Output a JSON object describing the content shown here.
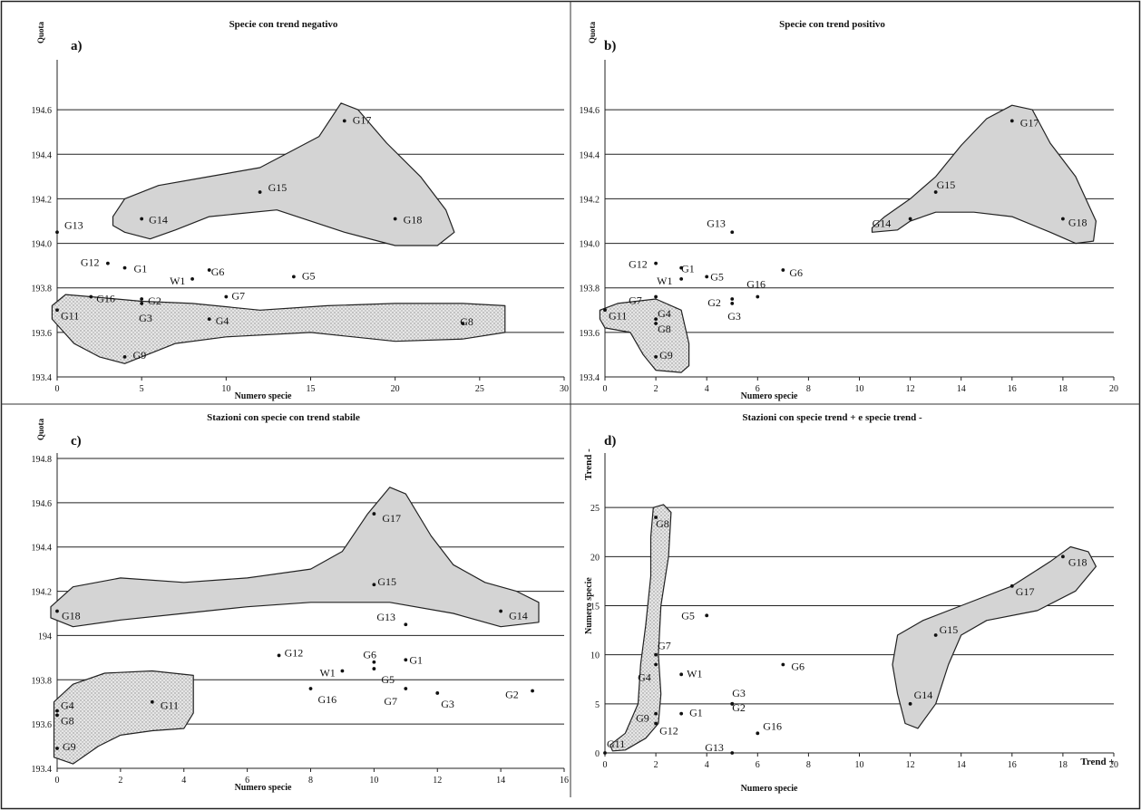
{
  "chart_data": [
    {
      "panel_label": "a)",
      "title": "Specie con trend negativo",
      "type": "scatter",
      "xlabel": "Numero specie",
      "ylabel": "Quota",
      "xlim": [
        0,
        30
      ],
      "ylim": [
        193.4,
        194.8
      ],
      "x_ticks": [
        0,
        5,
        10,
        15,
        20,
        25,
        30
      ],
      "y_ticks": [
        193.4,
        193.6,
        193.8,
        194.0,
        194.2,
        194.4,
        194.6
      ],
      "y_tick_labels": [
        "193.4",
        "193.6",
        "193.8",
        "194.0",
        "194.2",
        "194.4",
        "194.6"
      ],
      "grid": "horizontal",
      "points": [
        {
          "label": "G13",
          "x": 0,
          "y": 194.05
        },
        {
          "label": "G11",
          "x": 0,
          "y": 193.7
        },
        {
          "label": "G16",
          "x": 2,
          "y": 193.76
        },
        {
          "label": "G12",
          "x": 3,
          "y": 193.91
        },
        {
          "label": "G9",
          "x": 4,
          "y": 193.49
        },
        {
          "label": "G1",
          "x": 4,
          "y": 193.89
        },
        {
          "label": "G2",
          "x": 5,
          "y": 193.75
        },
        {
          "label": "G3",
          "x": 5,
          "y": 193.73
        },
        {
          "label": "G14",
          "x": 5,
          "y": 194.11
        },
        {
          "label": "W1",
          "x": 8,
          "y": 193.84
        },
        {
          "label": "G6",
          "x": 9,
          "y": 193.88
        },
        {
          "label": "G4",
          "x": 9,
          "y": 193.66
        },
        {
          "label": "G7",
          "x": 10,
          "y": 193.76
        },
        {
          "label": "G15",
          "x": 12,
          "y": 194.23
        },
        {
          "label": "G5",
          "x": 14,
          "y": 193.85
        },
        {
          "label": "G17",
          "x": 17,
          "y": 194.55
        },
        {
          "label": "G18",
          "x": 20,
          "y": 194.11
        },
        {
          "label": "G8",
          "x": 24,
          "y": 193.64
        }
      ],
      "regions": [
        {
          "fill": "solid",
          "path": [
            [
              3.3,
              194.12
            ],
            [
              4,
              194.2
            ],
            [
              6,
              194.26
            ],
            [
              9,
              194.3
            ],
            [
              12,
              194.34
            ],
            [
              14,
              194.42
            ],
            [
              15.5,
              194.48
            ],
            [
              16.8,
              194.63
            ],
            [
              17.8,
              194.6
            ],
            [
              19.5,
              194.45
            ],
            [
              21.5,
              194.3
            ],
            [
              23,
              194.15
            ],
            [
              23.5,
              194.05
            ],
            [
              22.5,
              193.99
            ],
            [
              20,
              193.99
            ],
            [
              17,
              194.05
            ],
            [
              13,
              194.15
            ],
            [
              9,
              194.12
            ],
            [
              7,
              194.06
            ],
            [
              5.5,
              194.02
            ],
            [
              4,
              194.05
            ],
            [
              3.3,
              194.08
            ]
          ]
        },
        {
          "fill": "dotted",
          "path": [
            [
              -0.3,
              193.72
            ],
            [
              0.5,
              193.77
            ],
            [
              2,
              193.76
            ],
            [
              5,
              193.74
            ],
            [
              8,
              193.73
            ],
            [
              12,
              193.7
            ],
            [
              16,
              193.72
            ],
            [
              20,
              193.73
            ],
            [
              24,
              193.73
            ],
            [
              26.5,
              193.72
            ],
            [
              26.5,
              193.6
            ],
            [
              24,
              193.57
            ],
            [
              20,
              193.56
            ],
            [
              15,
              193.6
            ],
            [
              10,
              193.58
            ],
            [
              7,
              193.55
            ],
            [
              4,
              193.46
            ],
            [
              2.5,
              193.49
            ],
            [
              1,
              193.55
            ],
            [
              -0.3,
              193.66
            ]
          ]
        }
      ]
    },
    {
      "panel_label": "b)",
      "title": "Specie con trend positivo",
      "type": "scatter",
      "xlabel": "Numero specie",
      "ylabel": "Quota",
      "xlim": [
        0,
        20
      ],
      "ylim": [
        193.4,
        194.8
      ],
      "x_ticks": [
        0,
        2,
        4,
        6,
        8,
        10,
        12,
        14,
        16,
        18,
        20
      ],
      "y_ticks": [
        193.4,
        193.6,
        193.8,
        194.0,
        194.2,
        194.4,
        194.6
      ],
      "y_tick_labels": [
        "193.4",
        "193.6",
        "193.8",
        "194.0",
        "194.2",
        "194.4",
        "194.6"
      ],
      "grid": "horizontal",
      "points": [
        {
          "label": "G11",
          "x": 0,
          "y": 193.7
        },
        {
          "label": "G12",
          "x": 2,
          "y": 193.91
        },
        {
          "label": "G7",
          "x": 2,
          "y": 193.76
        },
        {
          "label": "G4",
          "x": 2,
          "y": 193.66
        },
        {
          "label": "G8",
          "x": 2,
          "y": 193.64
        },
        {
          "label": "G9",
          "x": 2,
          "y": 193.49
        },
        {
          "label": "G1",
          "x": 3,
          "y": 193.89
        },
        {
          "label": "W1",
          "x": 3,
          "y": 193.84
        },
        {
          "label": "G5",
          "x": 4,
          "y": 193.85
        },
        {
          "label": "G2",
          "x": 5,
          "y": 193.75
        },
        {
          "label": "G3",
          "x": 5,
          "y": 193.73
        },
        {
          "label": "G13",
          "x": 5,
          "y": 194.05
        },
        {
          "label": "G16",
          "x": 6,
          "y": 193.76
        },
        {
          "label": "G6",
          "x": 7,
          "y": 193.88
        },
        {
          "label": "G14",
          "x": 12,
          "y": 194.11
        },
        {
          "label": "G15",
          "x": 13,
          "y": 194.23
        },
        {
          "label": "G17",
          "x": 16,
          "y": 194.55
        },
        {
          "label": "G18",
          "x": 18,
          "y": 194.11
        }
      ],
      "regions": [
        {
          "fill": "solid",
          "path": [
            [
              10.5,
              194.07
            ],
            [
              11,
              194.12
            ],
            [
              12,
              194.2
            ],
            [
              13,
              194.3
            ],
            [
              14,
              194.44
            ],
            [
              15,
              194.56
            ],
            [
              16,
              194.62
            ],
            [
              16.8,
              194.6
            ],
            [
              17.5,
              194.45
            ],
            [
              18.5,
              194.3
            ],
            [
              19.3,
              194.1
            ],
            [
              19.2,
              194.01
            ],
            [
              18.5,
              194.0
            ],
            [
              17.5,
              194.05
            ],
            [
              16,
              194.12
            ],
            [
              14.5,
              194.14
            ],
            [
              13,
              194.14
            ],
            [
              12,
              194.1
            ],
            [
              11.5,
              194.06
            ],
            [
              10.5,
              194.05
            ]
          ]
        },
        {
          "fill": "dotted",
          "path": [
            [
              -0.2,
              193.7
            ],
            [
              0.5,
              193.73
            ],
            [
              2,
              193.75
            ],
            [
              3,
              193.7
            ],
            [
              3.3,
              193.55
            ],
            [
              3.3,
              193.45
            ],
            [
              3,
              193.42
            ],
            [
              2,
              193.43
            ],
            [
              1.5,
              193.5
            ],
            [
              1,
              193.6
            ],
            [
              0,
              193.62
            ],
            [
              -0.2,
              193.66
            ]
          ]
        }
      ]
    },
    {
      "panel_label": "c)",
      "title": "Stazioni con specie con trend stabile",
      "type": "scatter",
      "xlabel": "Numero specie",
      "ylabel": "Quota",
      "xlim": [
        0,
        16
      ],
      "ylim": [
        193.4,
        194.8
      ],
      "x_ticks": [
        0,
        2,
        4,
        6,
        8,
        10,
        12,
        14,
        16
      ],
      "y_ticks": [
        193.4,
        193.6,
        193.8,
        194.0,
        194.2,
        194.4,
        194.6,
        194.8
      ],
      "y_tick_labels": [
        "193.4",
        "193.6",
        "193.8",
        "194",
        "194.2",
        "194.4",
        "194.6",
        "194.8"
      ],
      "grid": "horizontal",
      "points": [
        {
          "label": "G18",
          "x": 0,
          "y": 194.11
        },
        {
          "label": "G4",
          "x": 0,
          "y": 193.66
        },
        {
          "label": "G8",
          "x": 0,
          "y": 193.64
        },
        {
          "label": "G9",
          "x": 0,
          "y": 193.49
        },
        {
          "label": "G11",
          "x": 3,
          "y": 193.7
        },
        {
          "label": "G12",
          "x": 7,
          "y": 193.91
        },
        {
          "label": "G16",
          "x": 8,
          "y": 193.76
        },
        {
          "label": "W1",
          "x": 9,
          "y": 193.84
        },
        {
          "label": "G17",
          "x": 10,
          "y": 194.55
        },
        {
          "label": "G15",
          "x": 10,
          "y": 194.23
        },
        {
          "label": "G6",
          "x": 10,
          "y": 193.88
        },
        {
          "label": "G5",
          "x": 10,
          "y": 193.85
        },
        {
          "label": "G13",
          "x": 11,
          "y": 194.05
        },
        {
          "label": "G1",
          "x": 11,
          "y": 193.89
        },
        {
          "label": "G7",
          "x": 11,
          "y": 193.76
        },
        {
          "label": "G3",
          "x": 12,
          "y": 193.74
        },
        {
          "label": "G14",
          "x": 14,
          "y": 194.11
        },
        {
          "label": "G2",
          "x": 15,
          "y": 193.75
        }
      ],
      "regions": [
        {
          "fill": "solid",
          "path": [
            [
              -0.2,
              194.13
            ],
            [
              0.5,
              194.22
            ],
            [
              2,
              194.26
            ],
            [
              4,
              194.24
            ],
            [
              6,
              194.26
            ],
            [
              8,
              194.3
            ],
            [
              9,
              194.38
            ],
            [
              9.8,
              194.55
            ],
            [
              10.5,
              194.67
            ],
            [
              11,
              194.64
            ],
            [
              11.8,
              194.45
            ],
            [
              12.5,
              194.32
            ],
            [
              13.5,
              194.24
            ],
            [
              14.5,
              194.2
            ],
            [
              15.2,
              194.15
            ],
            [
              15.2,
              194.06
            ],
            [
              14,
              194.04
            ],
            [
              12.5,
              194.1
            ],
            [
              10.5,
              194.15
            ],
            [
              8,
              194.15
            ],
            [
              6,
              194.13
            ],
            [
              4,
              194.1
            ],
            [
              2,
              194.07
            ],
            [
              0.5,
              194.04
            ],
            [
              -0.2,
              194.08
            ]
          ]
        },
        {
          "fill": "dotted",
          "path": [
            [
              -0.1,
              193.7
            ],
            [
              0.5,
              193.78
            ],
            [
              1.5,
              193.83
            ],
            [
              3,
              193.84
            ],
            [
              4.3,
              193.82
            ],
            [
              4.3,
              193.65
            ],
            [
              4,
              193.58
            ],
            [
              3,
              193.57
            ],
            [
              2,
              193.55
            ],
            [
              1.3,
              193.5
            ],
            [
              0.5,
              193.42
            ],
            [
              -0.1,
              193.45
            ]
          ]
        }
      ]
    },
    {
      "panel_label": "d)",
      "title": "Stazioni con specie trend + e specie trend -",
      "type": "scatter",
      "xlabel": "Trend +",
      "ylabel": "Trend -",
      "xlabel_secondary": "Numero specie",
      "ylabel_secondary": "Numero specie",
      "xlim": [
        0,
        20
      ],
      "ylim": [
        0,
        30
      ],
      "x_ticks": [
        0,
        2,
        4,
        6,
        8,
        10,
        12,
        14,
        16,
        18,
        20
      ],
      "y_ticks": [
        0,
        5,
        10,
        15,
        20,
        25
      ],
      "y_tick_labels": [
        "0",
        "5",
        "10",
        "15",
        "20",
        "25"
      ],
      "grid": "horizontal",
      "points": [
        {
          "label": "G11",
          "x": 0,
          "y": 0
        },
        {
          "label": "G8",
          "x": 2,
          "y": 24
        },
        {
          "label": "G7",
          "x": 2,
          "y": 10
        },
        {
          "label": "G4",
          "x": 2,
          "y": 9
        },
        {
          "label": "G9",
          "x": 2,
          "y": 4
        },
        {
          "label": "G12",
          "x": 2,
          "y": 3
        },
        {
          "label": "W1",
          "x": 3,
          "y": 8
        },
        {
          "label": "G1",
          "x": 3,
          "y": 4
        },
        {
          "label": "G5",
          "x": 4,
          "y": 14
        },
        {
          "label": "G3",
          "x": 5,
          "y": 5
        },
        {
          "label": "G2",
          "x": 5,
          "y": 5
        },
        {
          "label": "G13",
          "x": 5,
          "y": 0
        },
        {
          "label": "G16",
          "x": 6,
          "y": 2
        },
        {
          "label": "G6",
          "x": 7,
          "y": 9
        },
        {
          "label": "G14",
          "x": 12,
          "y": 5
        },
        {
          "label": "G15",
          "x": 13,
          "y": 12
        },
        {
          "label": "G17",
          "x": 16,
          "y": 17
        },
        {
          "label": "G18",
          "x": 18,
          "y": 20
        }
      ],
      "regions": [
        {
          "fill": "dotted",
          "path": [
            [
              0.2,
              0.8
            ],
            [
              0.8,
              2
            ],
            [
              1.3,
              5
            ],
            [
              1.4,
              9
            ],
            [
              1.6,
              13
            ],
            [
              1.8,
              18
            ],
            [
              1.8,
              22
            ],
            [
              1.9,
              25
            ],
            [
              2.3,
              25.3
            ],
            [
              2.6,
              24.5
            ],
            [
              2.5,
              20
            ],
            [
              2.2,
              15
            ],
            [
              2.1,
              10
            ],
            [
              2.2,
              6
            ],
            [
              2.1,
              3
            ],
            [
              1.6,
              1.5
            ],
            [
              0.8,
              0.3
            ],
            [
              0.3,
              0.2
            ]
          ]
        },
        {
          "fill": "solid",
          "path": [
            [
              11.5,
              12
            ],
            [
              12.5,
              13.5
            ],
            [
              14,
              15
            ],
            [
              16,
              17
            ],
            [
              17.5,
              19.5
            ],
            [
              18.3,
              21
            ],
            [
              19,
              20.5
            ],
            [
              19.3,
              19
            ],
            [
              18.5,
              16.5
            ],
            [
              17,
              14.5
            ],
            [
              15,
              13.5
            ],
            [
              14,
              12
            ],
            [
              13.5,
              9
            ],
            [
              13,
              5
            ],
            [
              12.3,
              2.5
            ],
            [
              11.8,
              3
            ],
            [
              11.5,
              6
            ],
            [
              11.3,
              9
            ]
          ]
        }
      ]
    }
  ]
}
